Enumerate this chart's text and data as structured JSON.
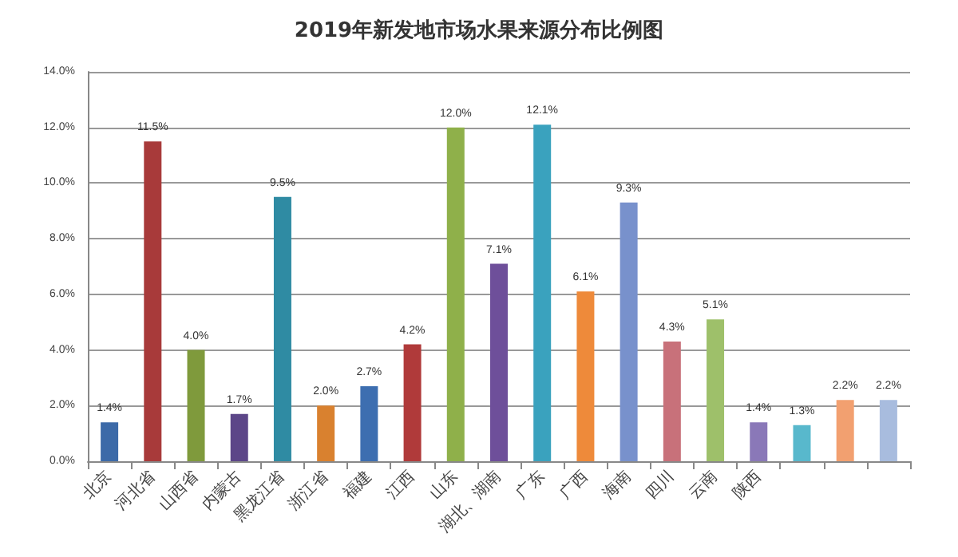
{
  "chart_data": {
    "type": "bar",
    "title": "2019年新发地市场水果来源分布比例图",
    "categories": [
      "北京",
      "河北省",
      "山西省",
      "内蒙古",
      "黑龙江省",
      "浙江省",
      "福建",
      "江西",
      "山东",
      "湖北、湖南",
      "广东",
      "广西",
      "海南",
      "四川",
      "云南",
      "陕西",
      null,
      null,
      null
    ],
    "values": [
      1.4,
      11.5,
      4.0,
      1.7,
      9.5,
      2.0,
      2.7,
      4.2,
      12.0,
      7.1,
      12.1,
      6.1,
      9.3,
      4.3,
      5.1,
      1.4,
      1.3,
      2.2,
      2.2
    ],
    "value_labels": [
      "1.4%",
      "11.5%",
      "4.0%",
      "1.7%",
      "9.5%",
      "2.0%",
      "2.7%",
      "4.2%",
      "12.0%",
      "7.1%",
      "12.1%",
      "6.1%",
      "9.3%",
      "4.3%",
      "5.1%",
      "1.4%",
      "1.3%",
      "2.2%",
      "2.2%"
    ],
    "colors": [
      "#3c6aa8",
      "#a83a3a",
      "#7f9a3c",
      "#5c4688",
      "#2f8ba3",
      "#d9812f",
      "#3d6eb0",
      "#b03a3a",
      "#8fb04a",
      "#6e4f9a",
      "#3aa2be",
      "#ee8a3a",
      "#7891cc",
      "#c8717a",
      "#9ec06a",
      "#8a78b8",
      "#58b8cc",
      "#f2a070",
      "#a8bcde"
    ],
    "ylim": [
      0,
      14
    ],
    "yticks": [
      {
        "value": 0,
        "label": "0.0%"
      },
      {
        "value": 2,
        "label": "2.0%"
      },
      {
        "value": 4,
        "label": "4.0%"
      },
      {
        "value": 6,
        "label": "6.0%"
      },
      {
        "value": 8,
        "label": "8.0%"
      },
      {
        "value": 10,
        "label": "10.0%"
      },
      {
        "value": 12,
        "label": "12.0%"
      },
      {
        "value": 14,
        "label": "14.0%"
      }
    ],
    "grid": "y"
  }
}
